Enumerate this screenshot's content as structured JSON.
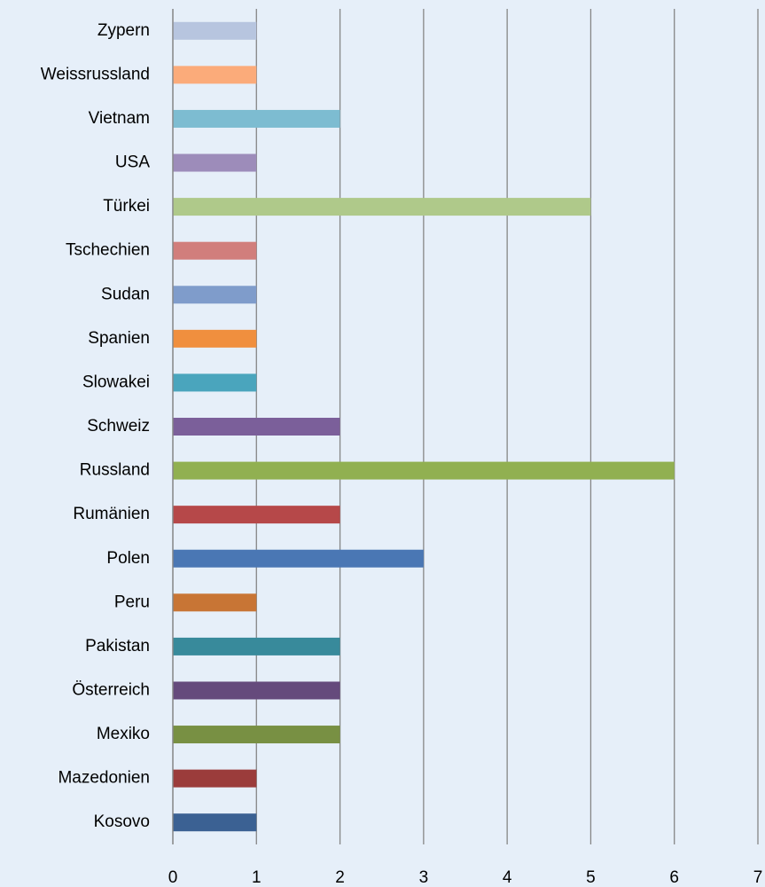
{
  "chart_data": {
    "type": "barh",
    "categories": [
      "Zypern",
      "Weissrussland",
      "Vietnam",
      "USA",
      "Türkei",
      "Tschechien",
      "Sudan",
      "Spanien",
      "Slowakei",
      "Schweiz",
      "Russland",
      "Rumänien",
      "Polen",
      "Peru",
      "Pakistan",
      "Österreich",
      "Mexiko",
      "Mazedonien",
      "Kosovo"
    ],
    "values": [
      1,
      1,
      2,
      1,
      5,
      1,
      1,
      1,
      1,
      2,
      6,
      2,
      3,
      1,
      2,
      2,
      2,
      1,
      1
    ],
    "colors": [
      "#b7c5df",
      "#fbab7a",
      "#7dbcd1",
      "#9d8cba",
      "#afc98a",
      "#d17e7c",
      "#7f9ccb",
      "#f08f3e",
      "#4aa5bd",
      "#7b5f9a",
      "#91b051",
      "#b64849",
      "#4a77b4",
      "#c87535",
      "#388a9b",
      "#654a7c",
      "#789043",
      "#9b3c3b",
      "#3b6193"
    ],
    "xlim": [
      0,
      7
    ],
    "xticks": [
      0,
      1,
      2,
      3,
      4,
      5,
      6,
      7
    ],
    "grid": true
  }
}
